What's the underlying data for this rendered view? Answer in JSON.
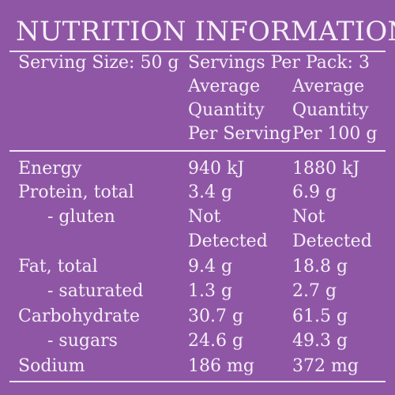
{
  "title": "NUTRITION INFORMATION",
  "serving_size": "Serving Size: 50 g",
  "servings_per_pack": "Servings Per Pack: 3",
  "headers": {
    "per_serving": [
      "Average",
      "Quantity",
      "Per Serving"
    ],
    "per_100g": [
      "Average",
      "Quantity",
      "Per 100 g"
    ]
  },
  "rows": [
    {
      "label": "Energy",
      "per_serving": "940 kJ",
      "per_100g": "1880 kJ"
    },
    {
      "label": "Protein, total",
      "per_serving": "3.4 g",
      "per_100g": "6.9 g"
    },
    {
      "label": "- gluten",
      "per_serving_l1": "Not",
      "per_serving_l2": "Detected",
      "per_100g_l1": "Not",
      "per_100g_l2": "Detected"
    },
    {
      "label": "Fat, total",
      "per_serving": "9.4 g",
      "per_100g": "18.8 g"
    },
    {
      "label": "- saturated",
      "per_serving": "1.3 g",
      "per_100g": "2.7 g"
    },
    {
      "label": "Carbohydrate",
      "per_serving": "30.7 g",
      "per_100g": "61.5 g"
    },
    {
      "label": "- sugars",
      "per_serving": "24.6 g",
      "per_100g": "49.3 g"
    },
    {
      "label": "Sodium",
      "per_serving": "186 mg",
      "per_100g": "372 mg"
    }
  ]
}
